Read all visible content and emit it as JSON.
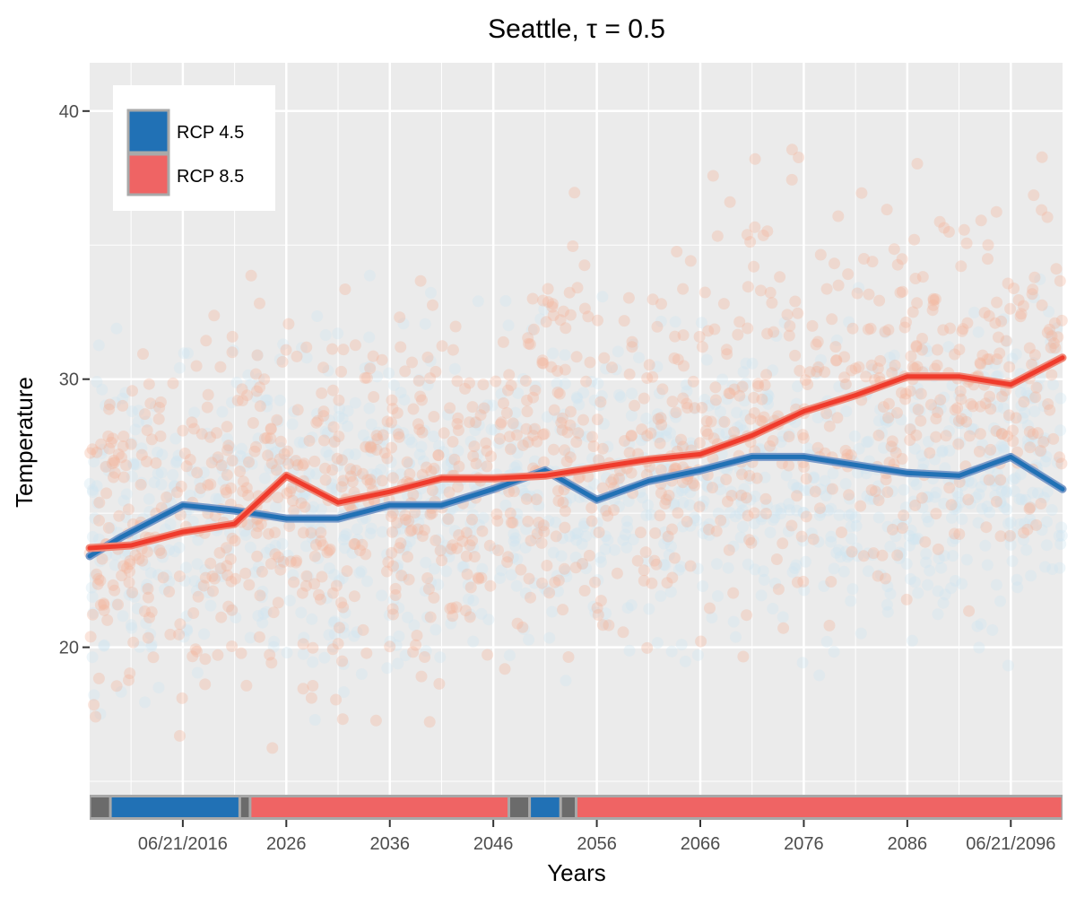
{
  "chart_data": {
    "type": "line",
    "title": "Seattle, τ = 0.5",
    "xlabel": "Years",
    "ylabel": "Temperature",
    "xlim": [
      2007,
      2101
    ],
    "ylim": [
      14.5,
      41.8
    ],
    "x_ticks": [
      {
        "label": "06/21/2016",
        "value": 2016
      },
      {
        "label": "2026",
        "value": 2026
      },
      {
        "label": "2036",
        "value": 2036
      },
      {
        "label": "2046",
        "value": 2046
      },
      {
        "label": "2056",
        "value": 2056
      },
      {
        "label": "2066",
        "value": 2066
      },
      {
        "label": "2076",
        "value": 2076
      },
      {
        "label": "2086",
        "value": 2086
      },
      {
        "label": "06/21/2096",
        "value": 2096
      }
    ],
    "y_ticks": [
      20,
      30,
      40
    ],
    "grid": true,
    "legend_position": "top-left",
    "series": [
      {
        "name": "RCP 4.5",
        "color": "#2171b5",
        "x": [
          2007,
          2010,
          2016,
          2021,
          2026,
          2031,
          2036,
          2041,
          2046,
          2051,
          2056,
          2061,
          2066,
          2071,
          2076,
          2081,
          2086,
          2091,
          2096,
          2101
        ],
        "y": [
          23.4,
          24.1,
          25.3,
          25.1,
          24.8,
          24.8,
          25.3,
          25.3,
          25.9,
          26.6,
          25.5,
          26.2,
          26.6,
          27.1,
          27.1,
          26.8,
          26.5,
          26.4,
          27.1,
          25.9
        ]
      },
      {
        "name": "RCP 8.5",
        "color": "#ef3b2c",
        "x": [
          2007,
          2011,
          2016,
          2021,
          2026,
          2031,
          2036,
          2041,
          2046,
          2051,
          2056,
          2061,
          2066,
          2071,
          2076,
          2081,
          2086,
          2091,
          2096,
          2101
        ],
        "y": [
          23.7,
          23.8,
          24.3,
          24.6,
          26.4,
          25.4,
          25.8,
          26.3,
          26.3,
          26.4,
          26.7,
          27.0,
          27.2,
          27.9,
          28.8,
          29.4,
          30.1,
          30.1,
          29.8,
          30.8
        ]
      }
    ],
    "scatter_clouds": [
      {
        "series": "RCP 4.5",
        "color": "#cde4f2",
        "approx_mean_start": 24.5,
        "approx_mean_end": 27.0,
        "approx_spread": 3.0
      },
      {
        "series": "RCP 8.5",
        "color": "#f4b49c",
        "approx_mean_start": 24.0,
        "approx_mean_end": 30.5,
        "approx_spread": 3.5
      }
    ],
    "period_bar": [
      {
        "from": 2007,
        "to": 2009,
        "color": "#6b6b6b"
      },
      {
        "from": 2009,
        "to": 2021.5,
        "color": "#2171b5"
      },
      {
        "from": 2021.5,
        "to": 2022.5,
        "color": "#6b6b6b"
      },
      {
        "from": 2022.5,
        "to": 2047.5,
        "color": "#ef6464"
      },
      {
        "from": 2047.5,
        "to": 2049.5,
        "color": "#6b6b6b"
      },
      {
        "from": 2049.5,
        "to": 2052.5,
        "color": "#2171b5"
      },
      {
        "from": 2052.5,
        "to": 2054,
        "color": "#6b6b6b"
      },
      {
        "from": 2054,
        "to": 2101,
        "color": "#ef6464"
      }
    ]
  },
  "legend": {
    "items": [
      {
        "label": "RCP 4.5",
        "color": "#2171b5"
      },
      {
        "label": "RCP 8.5",
        "color": "#ef6464"
      }
    ]
  },
  "colors": {
    "panel_background": "#ebebeb",
    "grid": "#ffffff",
    "line_outline_45": "#7b9bc9",
    "line_outline_85": "#f08a7a"
  }
}
